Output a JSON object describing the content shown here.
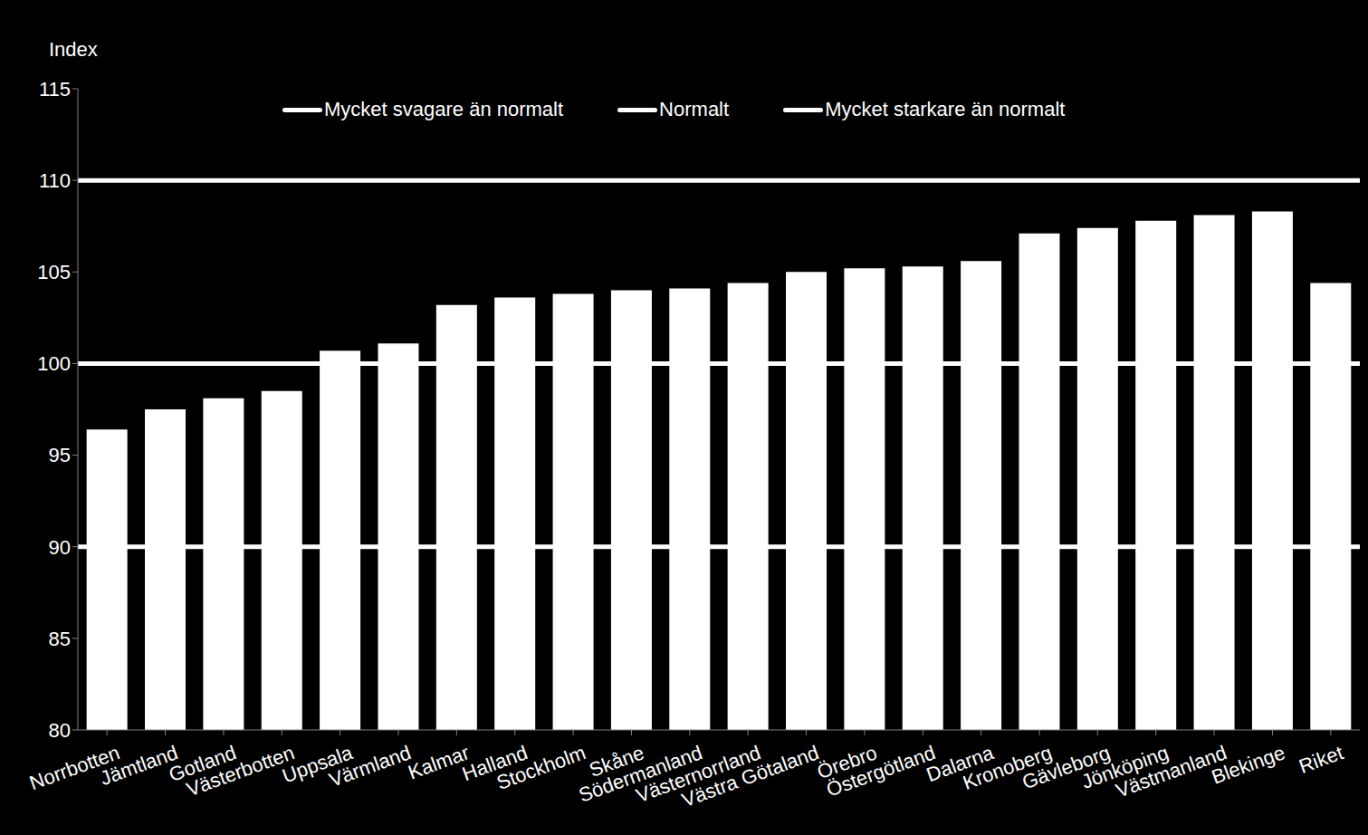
{
  "chart_data": {
    "type": "bar",
    "y_label": "Index",
    "categories": [
      "Norrbotten",
      "Jämtland",
      "Gotland",
      "Västerbotten",
      "Uppsala",
      "Värmland",
      "Kalmar",
      "Halland",
      "Stockholm",
      "Skåne",
      "Södermanland",
      "Västernorrland",
      "Västra Götaland",
      "Örebro",
      "Östergötland",
      "Dalarna",
      "Kronoberg",
      "Gävleborg",
      "Jönköping",
      "Västmanland",
      "Blekinge",
      "Riket"
    ],
    "values": [
      96.4,
      97.5,
      98.1,
      98.5,
      100.7,
      101.1,
      103.2,
      103.6,
      103.8,
      104.0,
      104.1,
      104.4,
      105.0,
      105.2,
      105.3,
      105.6,
      107.1,
      107.4,
      107.8,
      108.1,
      108.3,
      104.4
    ],
    "color": "#ffffff",
    "ylim": [
      80,
      115
    ],
    "yticks": [
      80,
      85,
      90,
      95,
      100,
      105,
      110,
      115
    ],
    "grid": false,
    "lines": [
      {
        "name": "Mycket svagare än normalt",
        "value": 90,
        "color": "#ffffff"
      },
      {
        "name": "Normalt",
        "value": 100,
        "color": "#ffffff"
      },
      {
        "name": "Mycket starkare än normalt",
        "value": 110,
        "color": "#ffffff"
      }
    ]
  }
}
